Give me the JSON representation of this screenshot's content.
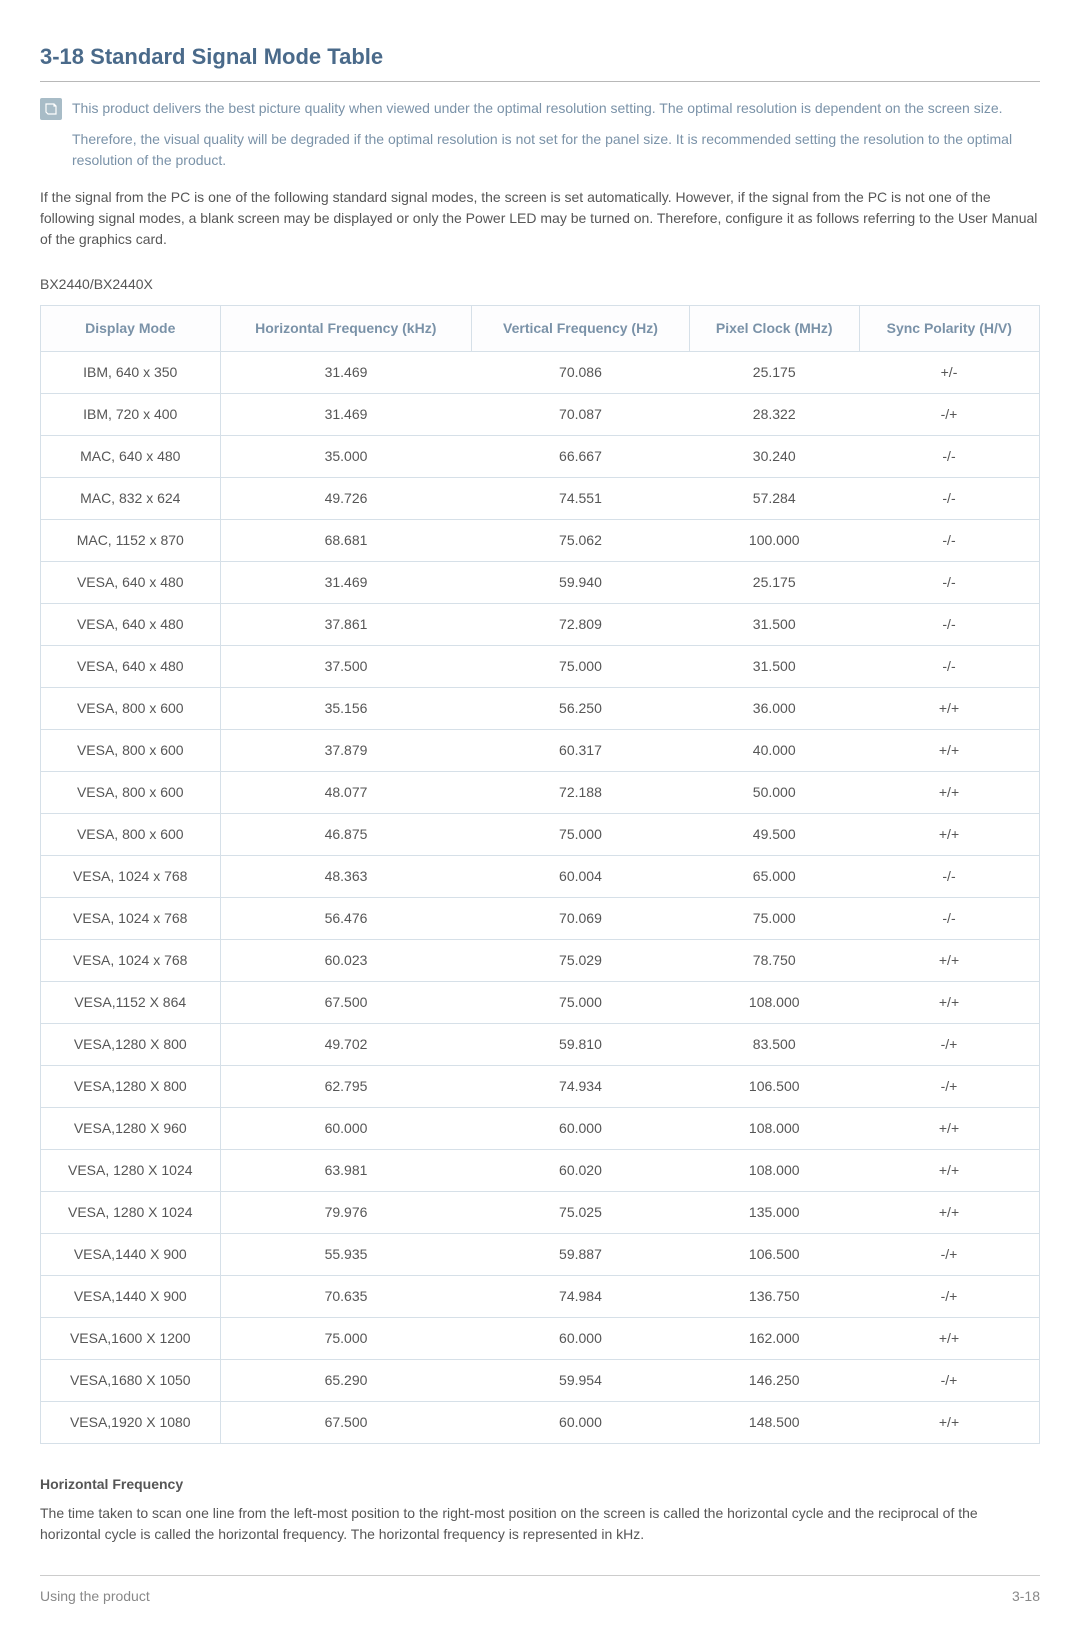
{
  "title": "3-18  Standard Signal Mode Table",
  "note": {
    "p1": "This product delivers the best picture quality when viewed under the optimal resolution setting. The optimal resolution is dependent on the screen size.",
    "p2": "Therefore, the visual quality will be degraded if the optimal resolution is not set for the panel size. It is recommended setting the resolution to the optimal resolution of the product."
  },
  "intro": "If the signal from the PC is one of the following standard signal modes, the screen is set automatically. However, if the signal from the PC is not one of the following signal modes, a blank screen may be displayed or only the Power LED may be turned on. Therefore, configure it as follows referring to the User Manual of the graphics card.",
  "model": "BX2440/BX2440X",
  "table": {
    "columns": [
      "Display Mode",
      "Horizontal Frequency (kHz)",
      "Vertical Frequency (Hz)",
      "Pixel Clock (MHz)",
      "Sync Polarity (H/V)"
    ],
    "rows": [
      [
        "IBM, 640 x 350",
        "31.469",
        "70.086",
        "25.175",
        "+/-"
      ],
      [
        "IBM, 720 x 400",
        "31.469",
        "70.087",
        "28.322",
        "-/+"
      ],
      [
        "MAC, 640 x 480",
        "35.000",
        "66.667",
        "30.240",
        "-/-"
      ],
      [
        "MAC, 832 x 624",
        "49.726",
        "74.551",
        "57.284",
        "-/-"
      ],
      [
        "MAC, 1152 x 870",
        "68.681",
        "75.062",
        "100.000",
        "-/-"
      ],
      [
        "VESA, 640 x 480",
        "31.469",
        "59.940",
        "25.175",
        "-/-"
      ],
      [
        "VESA, 640 x 480",
        "37.861",
        "72.809",
        "31.500",
        "-/-"
      ],
      [
        "VESA, 640 x 480",
        "37.500",
        "75.000",
        "31.500",
        "-/-"
      ],
      [
        "VESA, 800 x 600",
        "35.156",
        "56.250",
        "36.000",
        "+/+"
      ],
      [
        "VESA, 800 x 600",
        "37.879",
        "60.317",
        "40.000",
        "+/+"
      ],
      [
        "VESA, 800 x 600",
        "48.077",
        "72.188",
        "50.000",
        "+/+"
      ],
      [
        "VESA, 800 x 600",
        "46.875",
        "75.000",
        "49.500",
        "+/+"
      ],
      [
        "VESA, 1024 x 768",
        "48.363",
        "60.004",
        "65.000",
        "-/-"
      ],
      [
        "VESA, 1024 x 768",
        "56.476",
        "70.069",
        "75.000",
        "-/-"
      ],
      [
        "VESA, 1024 x 768",
        "60.023",
        "75.029",
        "78.750",
        "+/+"
      ],
      [
        "VESA,1152 X 864",
        "67.500",
        "75.000",
        "108.000",
        "+/+"
      ],
      [
        "VESA,1280 X 800",
        "49.702",
        "59.810",
        "83.500",
        "-/+"
      ],
      [
        "VESA,1280 X 800",
        "62.795",
        "74.934",
        "106.500",
        "-/+"
      ],
      [
        "VESA,1280 X 960",
        "60.000",
        "60.000",
        "108.000",
        "+/+"
      ],
      [
        "VESA, 1280 X 1024",
        "63.981",
        "60.020",
        "108.000",
        "+/+"
      ],
      [
        "VESA, 1280 X 1024",
        "79.976",
        "75.025",
        "135.000",
        "+/+"
      ],
      [
        "VESA,1440 X 900",
        "55.935",
        "59.887",
        "106.500",
        "-/+"
      ],
      [
        "VESA,1440 X 900",
        "70.635",
        "74.984",
        "136.750",
        "-/+"
      ],
      [
        "VESA,1600 X 1200",
        "75.000",
        "60.000",
        "162.000",
        "+/+"
      ],
      [
        "VESA,1680 X 1050",
        "65.290",
        "59.954",
        "146.250",
        "-/+"
      ],
      [
        "VESA,1920 X 1080",
        "67.500",
        "60.000",
        "148.500",
        "+/+"
      ]
    ]
  },
  "definition": {
    "title": "Horizontal Frequency",
    "body": "The time taken to scan one line from the left-most position to the right-most position on the screen is called the horizontal cycle and the reciprocal of the horizontal cycle is called the horizontal frequency. The horizontal frequency is represented in kHz."
  },
  "footer": {
    "left": "Using the product",
    "right": "3-18"
  },
  "colors": {
    "heading": "#4a6a8a",
    "note_text": "#7a92a8",
    "body_text": "#565656",
    "table_border": "#d6e0e8",
    "icon_bg": "#a8bcc7"
  }
}
